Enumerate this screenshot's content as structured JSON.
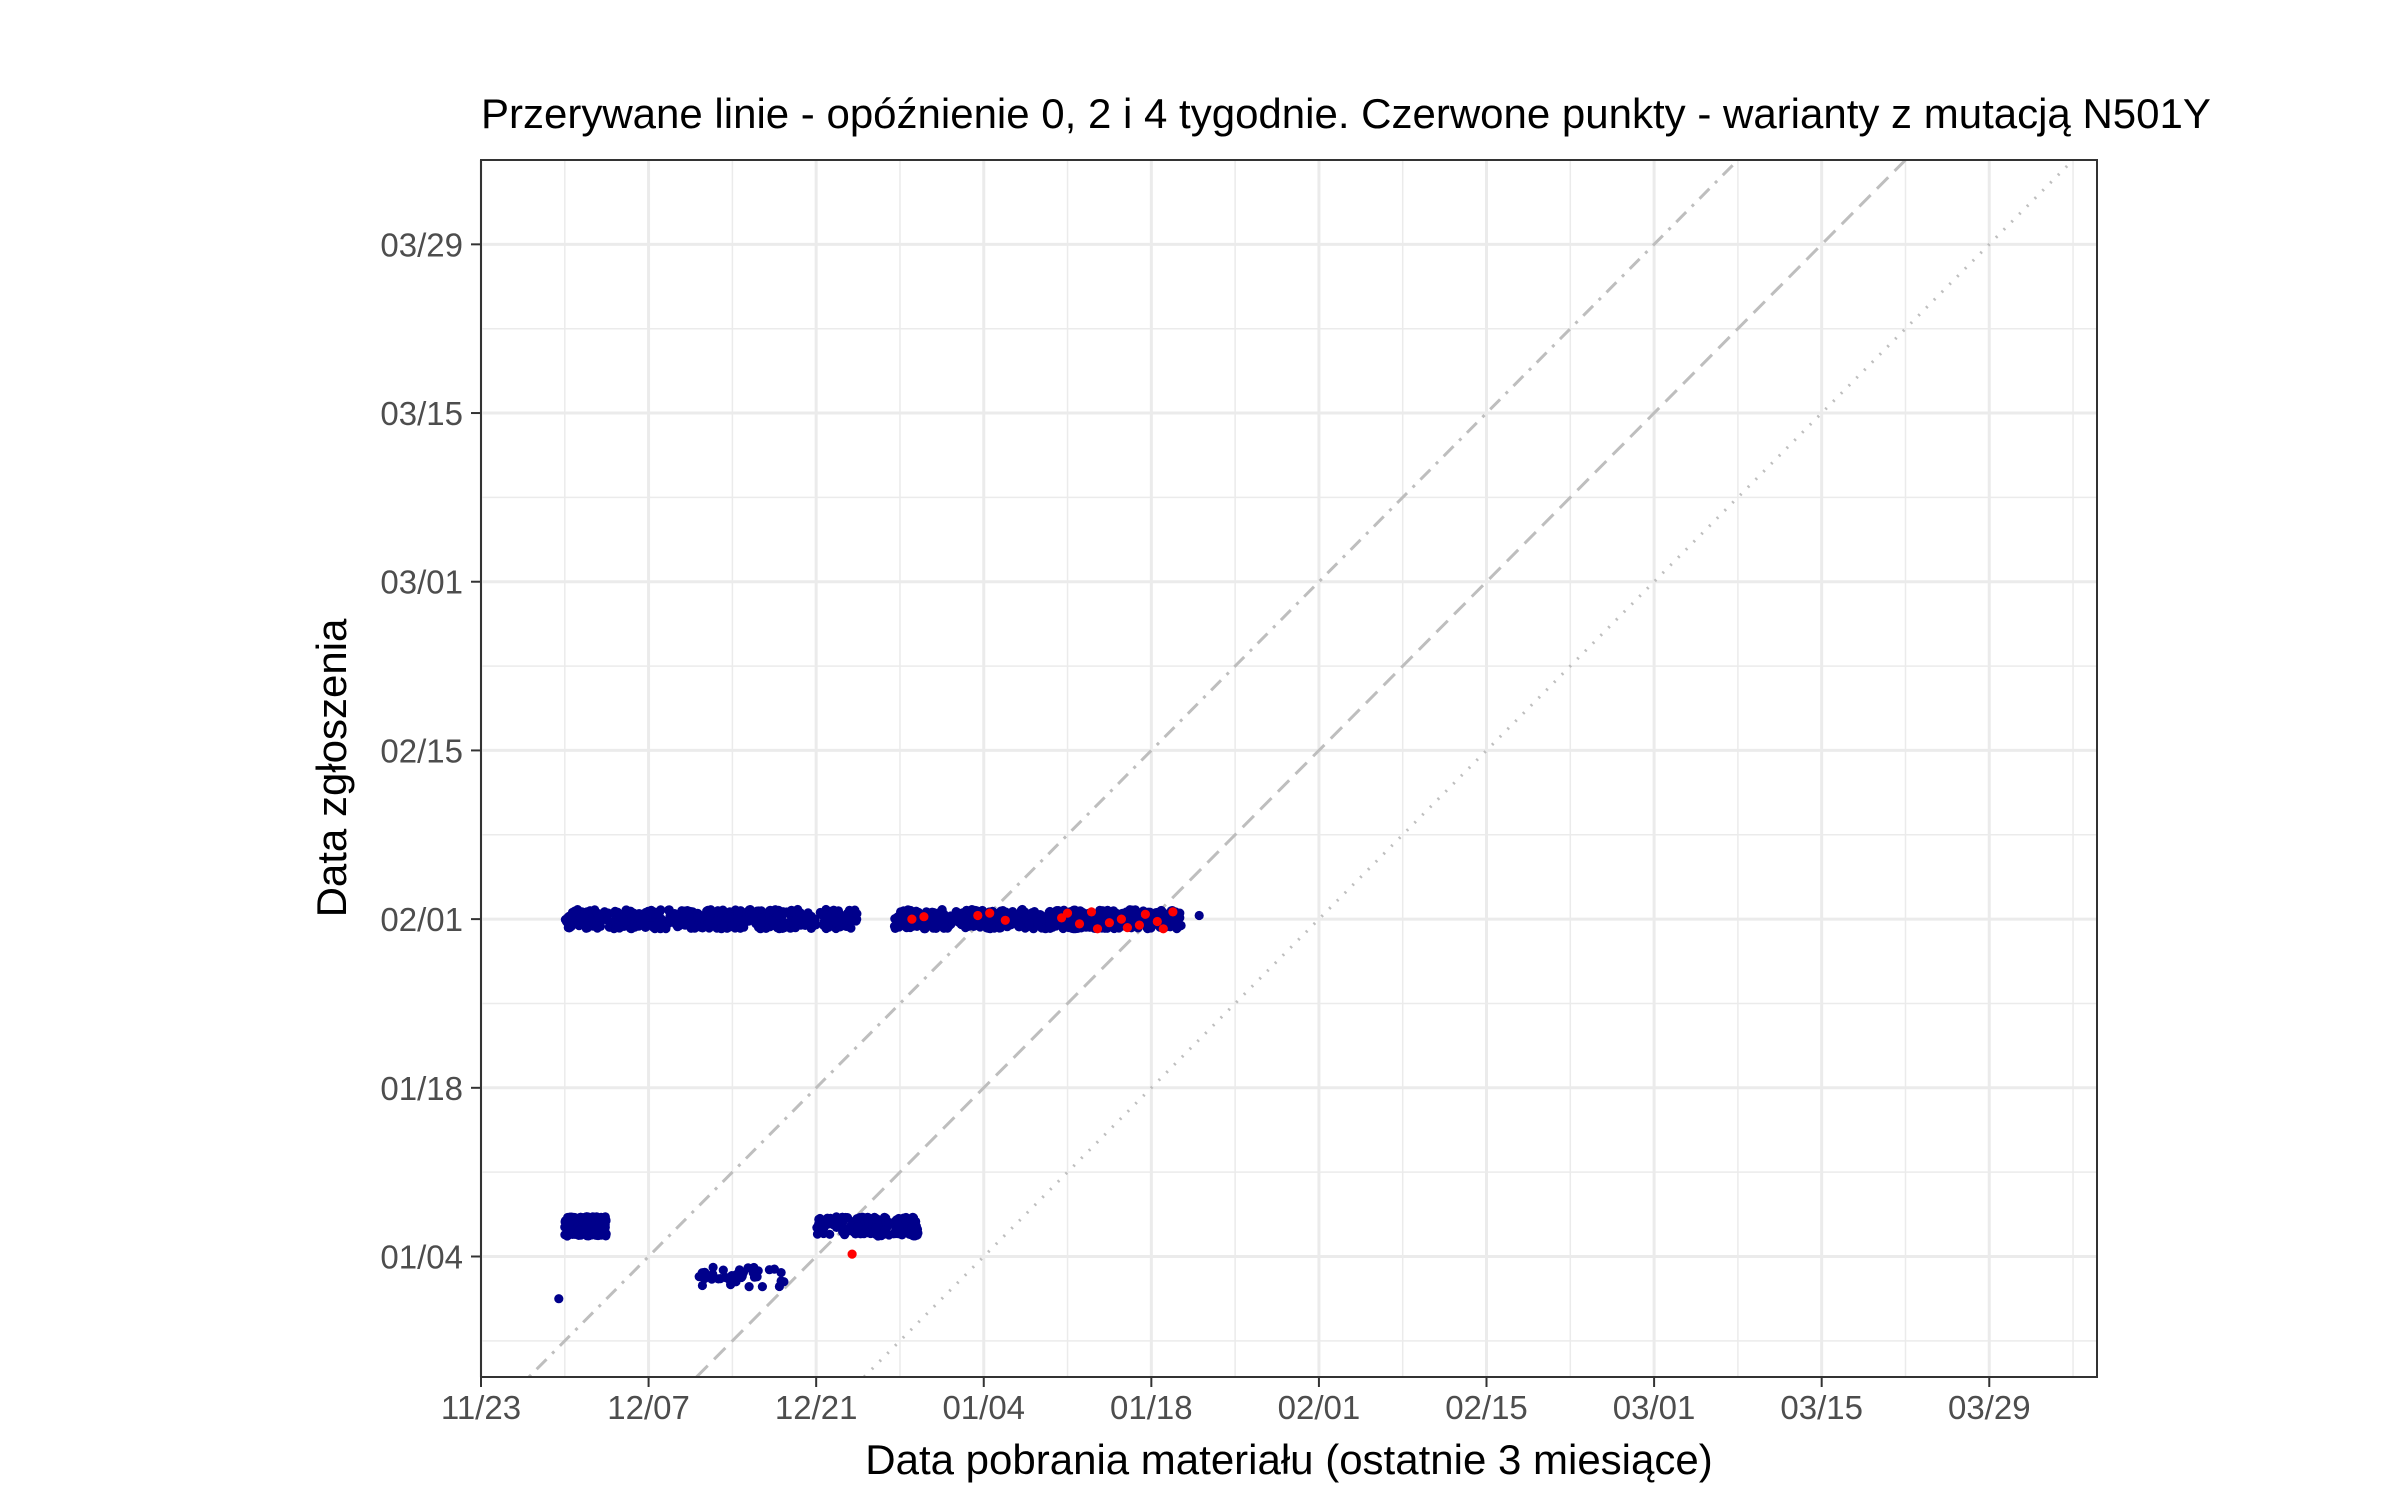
{
  "chart_data": {
    "type": "scatter",
    "title": "Przerywane linie - opóźnienie 0, 2 i 4 tygodnie. Czerwone punkty - warianty z mutacją N501Y",
    "xlabel": "Data pobrania materiału (ostatnie 3 miesiące)",
    "ylabel": "Data zgłoszenia",
    "x_origin_date": "2020-11-23",
    "xlim_days": [
      0,
      135
    ],
    "ylim_days": [
      32,
      133
    ],
    "x_ticks": [
      {
        "day": 0,
        "label": "11/23"
      },
      {
        "day": 14,
        "label": "12/07"
      },
      {
        "day": 28,
        "label": "12/21"
      },
      {
        "day": 42,
        "label": "01/04"
      },
      {
        "day": 56,
        "label": "01/18"
      },
      {
        "day": 70,
        "label": "02/01"
      },
      {
        "day": 84,
        "label": "02/15"
      },
      {
        "day": 98,
        "label": "03/01"
      },
      {
        "day": 112,
        "label": "03/15"
      },
      {
        "day": 126,
        "label": "03/29"
      }
    ],
    "y_ticks": [
      {
        "day": 42,
        "label": "01/04"
      },
      {
        "day": 56,
        "label": "01/18"
      },
      {
        "day": 70,
        "label": "02/01"
      },
      {
        "day": 84,
        "label": "02/15"
      },
      {
        "day": 98,
        "label": "03/01"
      },
      {
        "day": 112,
        "label": "03/15"
      },
      {
        "day": 126,
        "label": "03/29"
      }
    ],
    "reference_lines": [
      {
        "delay_weeks": 0,
        "style": "dotted"
      },
      {
        "delay_weeks": 2,
        "style": "dashed"
      },
      {
        "delay_weeks": 4,
        "style": "dotdash"
      }
    ],
    "series": [
      {
        "color": "#00008B",
        "clusters": [
          {
            "report_day": 70,
            "x_from": 7,
            "x_to": 31.5,
            "count": 520
          },
          {
            "report_day": 70,
            "x_from": 34.5,
            "x_to": 58.5,
            "count": 480
          },
          {
            "report_day": 44.5,
            "x_from": 7,
            "x_to": 10.5,
            "count": 200
          },
          {
            "report_day": 44.5,
            "x_from": 28,
            "x_to": 36.5,
            "count": 220
          },
          {
            "report_day": 40.3,
            "x_from": 18,
            "x_to": 25.5,
            "count": 40
          }
        ],
        "points": [
          {
            "x": 6.5,
            "y": 38.5
          },
          {
            "x": 60,
            "y": 70.3
          },
          {
            "x": 29,
            "y": 70.1
          }
        ]
      },
      {
        "color": "#FF0000",
        "points": [
          {
            "x": 31,
            "y": 42.2
          },
          {
            "x": 36,
            "y": 70.0
          },
          {
            "x": 37,
            "y": 70.2
          },
          {
            "x": 41.5,
            "y": 70.3
          },
          {
            "x": 42.5,
            "y": 70.5
          },
          {
            "x": 43.8,
            "y": 69.9
          },
          {
            "x": 48.5,
            "y": 70.1
          },
          {
            "x": 49,
            "y": 70.5
          },
          {
            "x": 50,
            "y": 69.6
          },
          {
            "x": 51,
            "y": 70.6
          },
          {
            "x": 51.5,
            "y": 69.2
          },
          {
            "x": 52.5,
            "y": 69.7
          },
          {
            "x": 53.5,
            "y": 70.0
          },
          {
            "x": 54,
            "y": 69.3
          },
          {
            "x": 55,
            "y": 69.5
          },
          {
            "x": 55.5,
            "y": 70.4
          },
          {
            "x": 56.5,
            "y": 69.8
          },
          {
            "x": 57,
            "y": 69.2
          },
          {
            "x": 57.8,
            "y": 70.6
          }
        ]
      }
    ]
  }
}
